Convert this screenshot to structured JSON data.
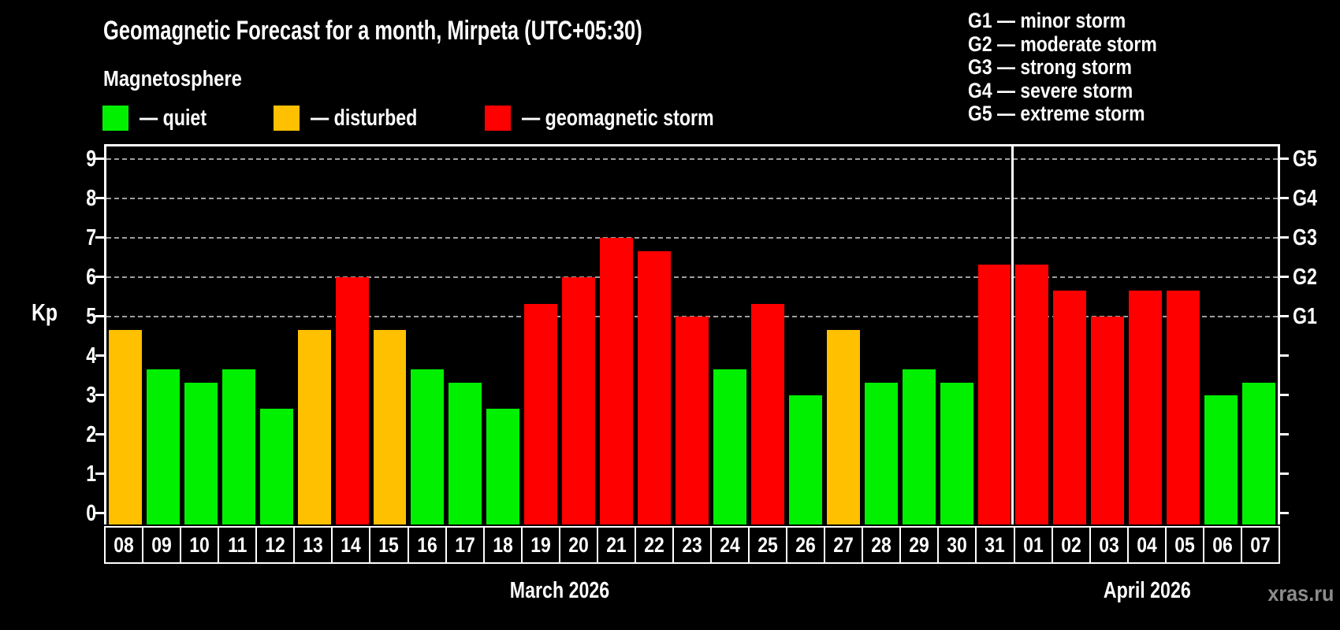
{
  "header": {
    "title": "Geomagnetic Forecast for a month, Mirpeta (UTC+05:30)",
    "subtitle": "Magnetosphere"
  },
  "legend": {
    "items": [
      {
        "key": "quiet",
        "label": "— quiet"
      },
      {
        "key": "disturbed",
        "label": "— disturbed"
      },
      {
        "key": "storm",
        "label": "— geomagnetic storm"
      }
    ]
  },
  "storm_scale": {
    "separator": " — ",
    "items": [
      {
        "code": "G1",
        "label": "minor storm",
        "kp": 5
      },
      {
        "code": "G2",
        "label": "moderate storm",
        "kp": 6
      },
      {
        "code": "G3",
        "label": "strong storm",
        "kp": 7
      },
      {
        "code": "G4",
        "label": "severe storm",
        "kp": 8
      },
      {
        "code": "G5",
        "label": "extreme storm",
        "kp": 9
      }
    ]
  },
  "watermark": "xras.ru",
  "colors": {
    "quiet": "#00f000",
    "disturbed": "#ffc000",
    "storm": "#ff0000",
    "grid": "#9e9e9e",
    "frame": "#ffffff",
    "background": "#000000",
    "watermark": "#8c8c8c"
  },
  "chart_data": {
    "type": "bar",
    "title": "Geomagnetic Forecast for a month, Mirpeta (UTC+05:30)",
    "ylabel": "Kp",
    "xlabel": "",
    "ylim": [
      0,
      9
    ],
    "yticks": [
      0,
      1,
      2,
      3,
      4,
      5,
      6,
      7,
      8,
      9
    ],
    "gridlines": [
      5,
      6,
      7,
      8,
      9
    ],
    "grid_style": "dashed",
    "legend_position": "top",
    "right_axis_labels": {
      "5": "G1",
      "6": "G2",
      "7": "G3",
      "8": "G4",
      "9": "G5"
    },
    "months": [
      {
        "label": "March 2026",
        "days": 24
      },
      {
        "label": "April 2026",
        "days": 7
      }
    ],
    "categories": [
      "08",
      "09",
      "10",
      "11",
      "12",
      "13",
      "14",
      "15",
      "16",
      "17",
      "18",
      "19",
      "20",
      "21",
      "22",
      "23",
      "24",
      "25",
      "26",
      "27",
      "28",
      "29",
      "30",
      "31",
      "01",
      "02",
      "03",
      "04",
      "05",
      "06",
      "07"
    ],
    "values": [
      4.67,
      3.67,
      3.33,
      3.67,
      2.67,
      4.67,
      6,
      4.67,
      3.67,
      3.33,
      2.67,
      5.33,
      6,
      7,
      6.67,
      5,
      3.67,
      5.33,
      3,
      4.67,
      3.33,
      3.67,
      3.33,
      6.33,
      6.33,
      5.67,
      5,
      5.67,
      5.67,
      3,
      3.33
    ],
    "status": [
      "disturbed",
      "quiet",
      "quiet",
      "quiet",
      "quiet",
      "disturbed",
      "storm",
      "disturbed",
      "quiet",
      "quiet",
      "quiet",
      "storm",
      "storm",
      "storm",
      "storm",
      "storm",
      "quiet",
      "storm",
      "quiet",
      "disturbed",
      "quiet",
      "quiet",
      "quiet",
      "storm",
      "storm",
      "storm",
      "storm",
      "storm",
      "storm",
      "quiet",
      "quiet"
    ]
  }
}
